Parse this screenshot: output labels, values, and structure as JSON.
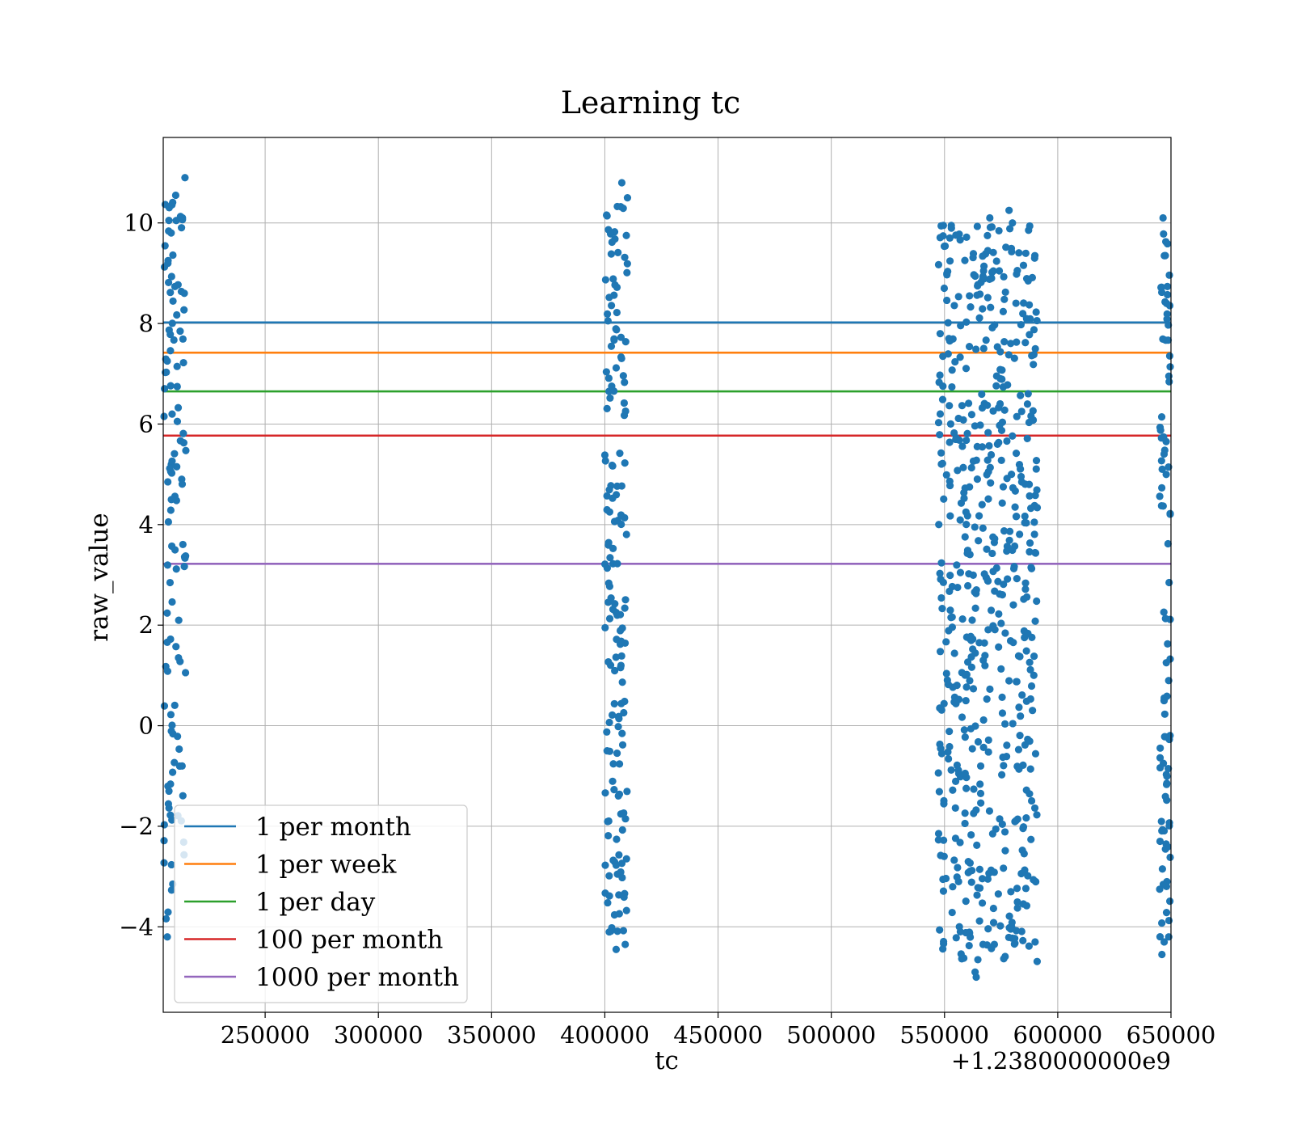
{
  "chart_data": {
    "type": "scatter",
    "title": "Learning tc",
    "xlabel": "tc",
    "ylabel": "raw_value",
    "x_offset_label": "+1.2380000000e9",
    "xlim": [
      1238205000,
      1238650000
    ],
    "ylim": [
      -5.7,
      11.7
    ],
    "x_ticks": [
      1238250000,
      1238300000,
      1238350000,
      1238400000,
      1238450000,
      1238500000,
      1238550000,
      1238600000,
      1238650000
    ],
    "x_tick_labels": [
      "250000",
      "300000",
      "350000",
      "400000",
      "450000",
      "500000",
      "550000",
      "600000",
      "650000"
    ],
    "y_ticks": [
      -4,
      -2,
      0,
      2,
      4,
      6,
      8,
      10
    ],
    "y_tick_labels": [
      "−4",
      "−2",
      "0",
      "2",
      "4",
      "6",
      "8",
      "10"
    ],
    "grid": true,
    "legend_position": "lower-left",
    "scatter_color": "#1f77b4",
    "reference_lines": [
      {
        "name": "1 per month",
        "y": 8.02,
        "color": "#1f77b4"
      },
      {
        "name": "1 per week",
        "y": 7.42,
        "color": "#ff7f0e"
      },
      {
        "name": "1 per day",
        "y": 6.65,
        "color": "#2ca02c"
      },
      {
        "name": "100 per month",
        "y": 5.77,
        "color": "#d62728"
      },
      {
        "name": "1000 per month",
        "y": 3.22,
        "color": "#9467bd"
      }
    ],
    "clusters": [
      {
        "x_min": 1238205000,
        "x_max": 1238215000,
        "y_min": -4.2,
        "y_max": 10.9,
        "count": 115,
        "highlights": [
          [
            1238214600,
            10.9
          ],
          [
            1238210500,
            10.55
          ],
          [
            1238213500,
            10.1
          ],
          [
            1238207500,
            10.05
          ],
          [
            1238208500,
            9.8
          ],
          [
            1238206800,
            -4.2
          ],
          [
            1238209200,
            -3.15
          ]
        ]
      },
      {
        "x_min": 1238400000,
        "x_max": 1238410000,
        "y_min": -4.45,
        "y_max": 10.8,
        "count": 160,
        "highlights": [
          [
            1238407500,
            10.8
          ],
          [
            1238410000,
            10.5
          ],
          [
            1238409500,
            9.75
          ],
          [
            1238405000,
            -4.45
          ],
          [
            1238409000,
            -4.35
          ]
        ]
      },
      {
        "x_min": 1238547000,
        "x_max": 1238591000,
        "y_min": -5.0,
        "y_max": 10.25,
        "count": 560,
        "highlights": [
          [
            1238578500,
            10.25
          ],
          [
            1238570000,
            10.1
          ],
          [
            1238580000,
            10.0
          ],
          [
            1238549500,
            9.95
          ],
          [
            1238553000,
            9.95
          ],
          [
            1238563500,
            -4.9
          ],
          [
            1238564000,
            -5.0
          ],
          [
            1238567000,
            -4.35
          ],
          [
            1238572000,
            -4.35
          ],
          [
            1238590000,
            -4.3
          ]
        ]
      },
      {
        "x_min": 1238645000,
        "x_max": 1238650000,
        "y_min": -4.55,
        "y_max": 10.1,
        "count": 90,
        "highlights": [
          [
            1238646500,
            10.1
          ],
          [
            1238647500,
            9.35
          ],
          [
            1238646000,
            -4.55
          ],
          [
            1238647000,
            -4.3
          ],
          [
            1238649000,
            -4.2
          ]
        ]
      }
    ]
  }
}
